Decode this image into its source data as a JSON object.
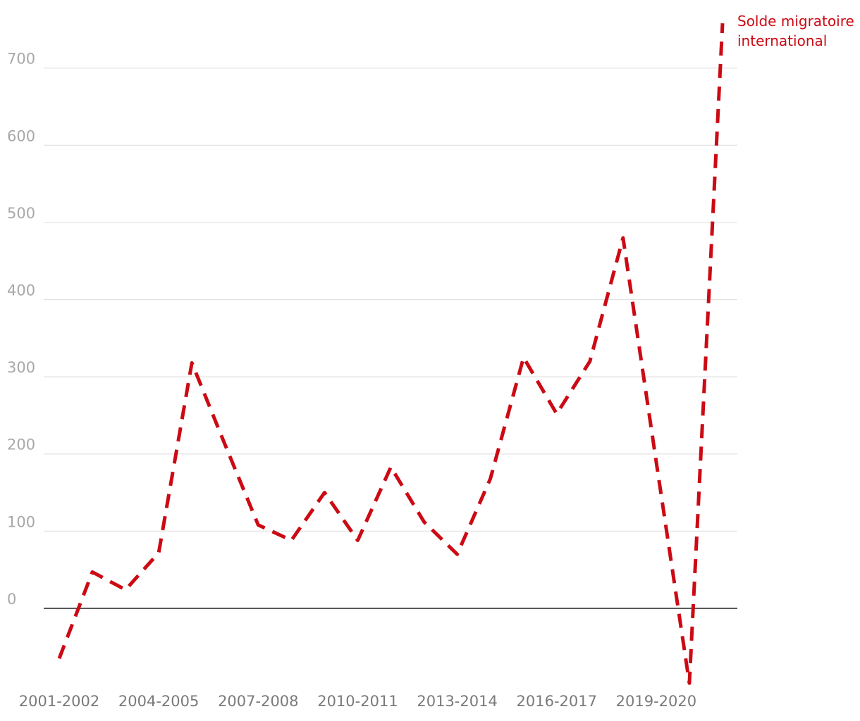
{
  "chart_data": {
    "type": "line",
    "categories": [
      "2001-2002",
      null,
      null,
      "2004-2005",
      null,
      null,
      "2007-2008",
      null,
      null,
      "2010-2011",
      null,
      null,
      "2013-2014",
      null,
      null,
      "2016-2017",
      null,
      null,
      "2019-2020",
      null,
      null
    ],
    "series": [
      {
        "name": "Solde migratoire international",
        "color": "#cc0a14",
        "values": [
          -65,
          47,
          24,
          72,
          318,
          212,
          108,
          88,
          150,
          88,
          183,
          112,
          70,
          168,
          325,
          252,
          320,
          480,
          190,
          -97,
          758
        ]
      }
    ],
    "ylim": [
      -110,
      770
    ],
    "yticks": [
      0,
      100,
      200,
      300,
      400,
      500,
      600,
      700
    ],
    "grid": true,
    "dashed": true
  }
}
